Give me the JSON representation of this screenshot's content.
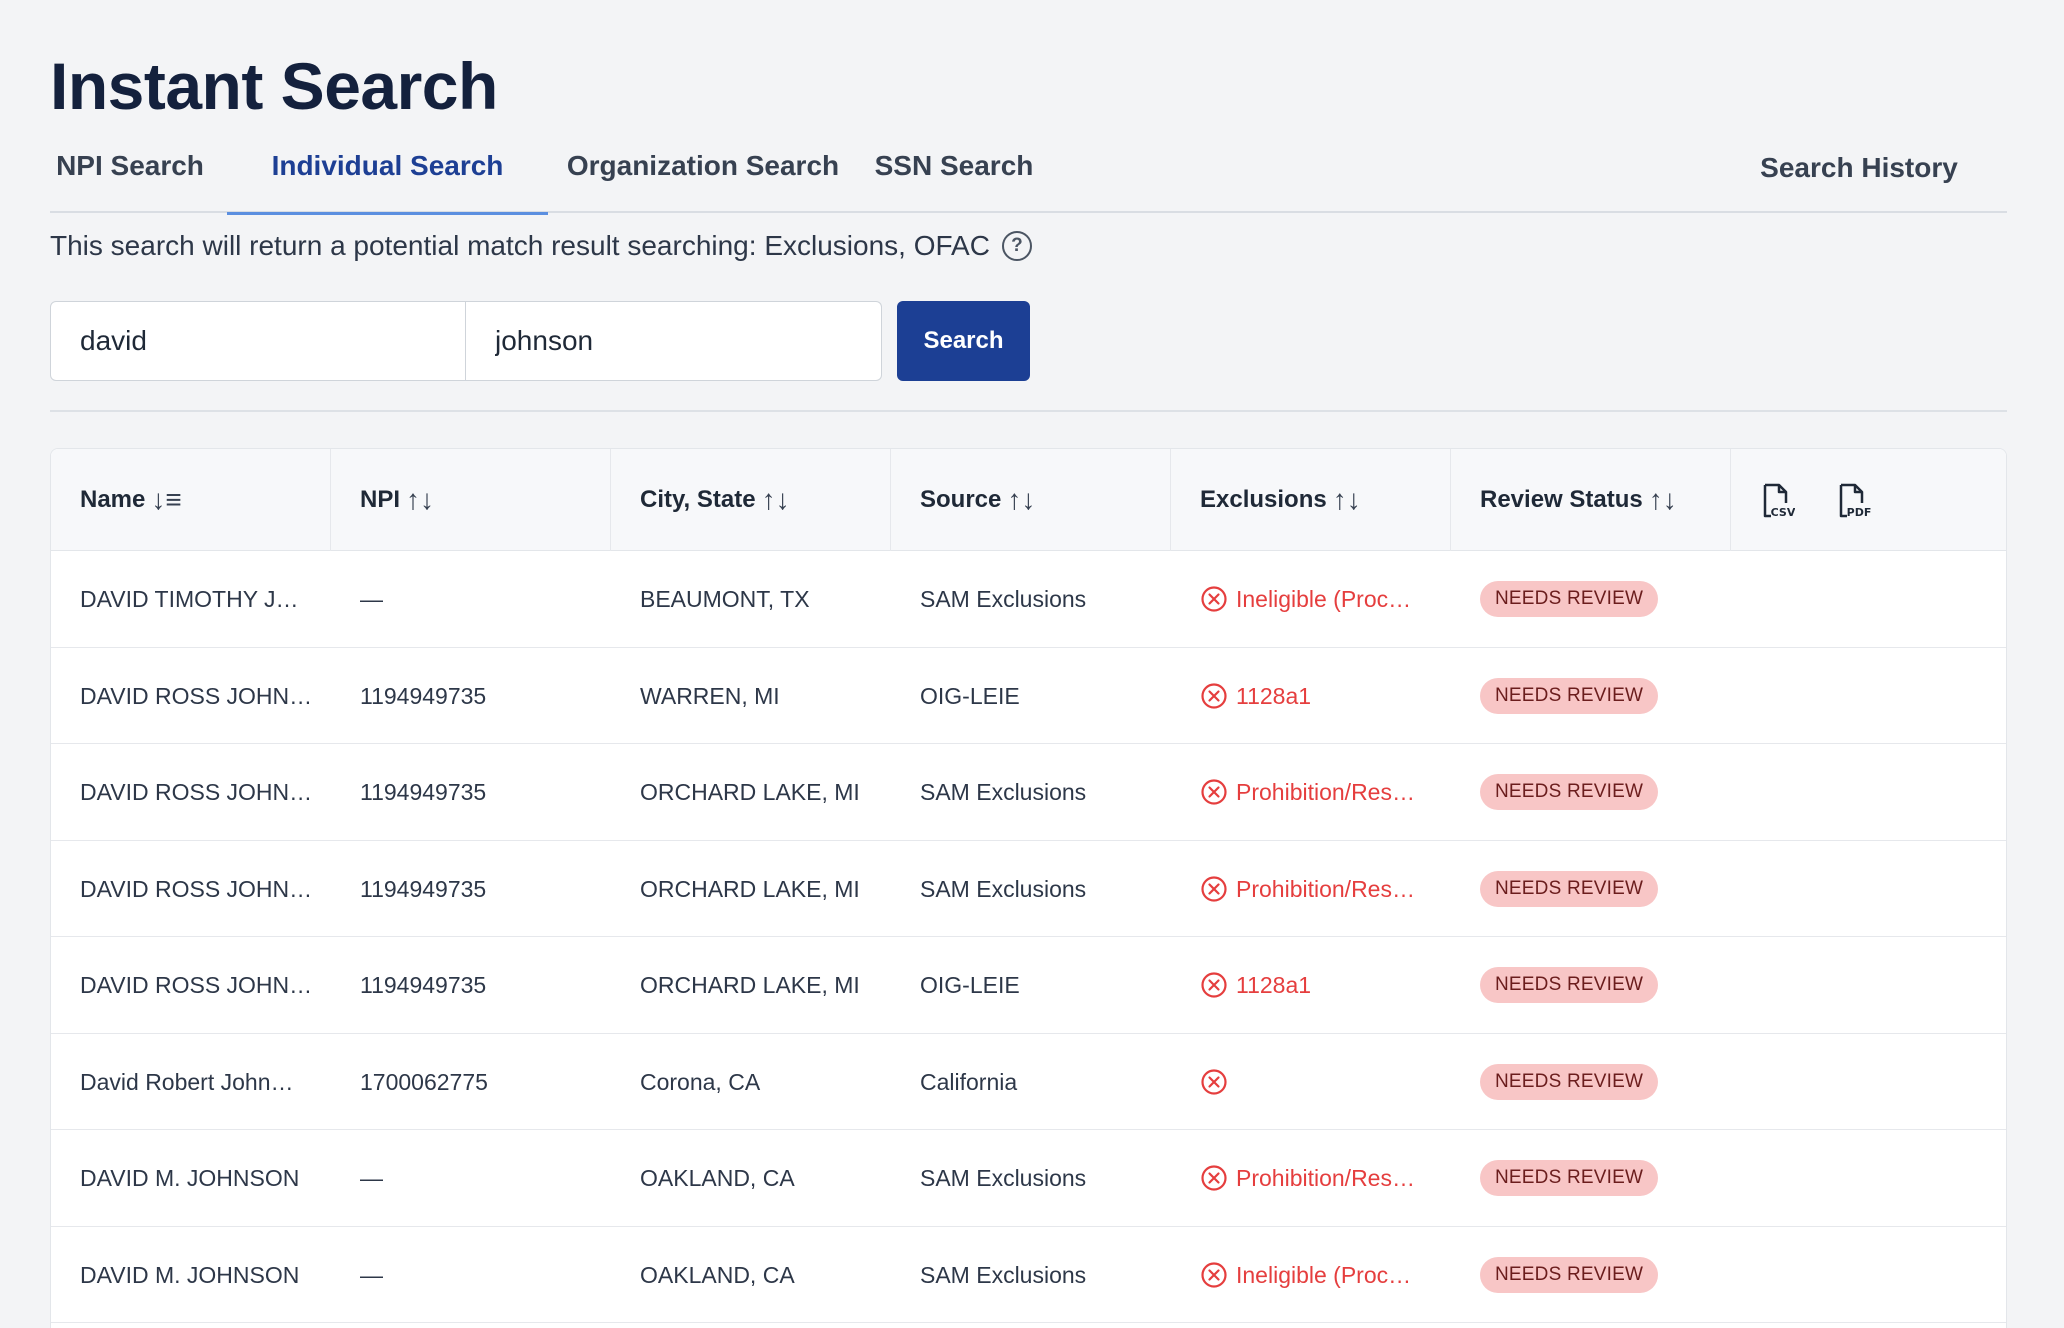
{
  "page": {
    "title": "Instant Search"
  },
  "tabs": [
    {
      "label": "NPI Search",
      "active": false
    },
    {
      "label": "Individual Search",
      "active": true
    },
    {
      "label": "Organization Search",
      "active": false
    },
    {
      "label": "SSN Search",
      "active": false
    }
  ],
  "history_label": "Search History",
  "info": {
    "text": "This search will return a potential match result searching: Exclusions, OFAC",
    "help_glyph": "?"
  },
  "search": {
    "first_name": "david",
    "last_name": "johnson",
    "button_label": "Search"
  },
  "table": {
    "columns": [
      {
        "label": "Name",
        "sort": "↓≡"
      },
      {
        "label": "NPI",
        "sort": "↑↓"
      },
      {
        "label": "City, State",
        "sort": "↑↓"
      },
      {
        "label": "Source",
        "sort": "↑↓"
      },
      {
        "label": "Exclusions",
        "sort": "↑↓"
      },
      {
        "label": "Review Status",
        "sort": "↑↓"
      }
    ],
    "export": {
      "csv_label": "CSV",
      "pdf_label": "PDF"
    },
    "rows": [
      {
        "name": "DAVID TIMOTHY J…",
        "npi": "—",
        "city": "BEAUMONT, TX",
        "source": "SAM Exclusions",
        "exclusion": "Ineligible (Proc…",
        "status": "NEEDS REVIEW"
      },
      {
        "name": "DAVID ROSS JOHN…",
        "npi": "1194949735",
        "city": "WARREN, MI",
        "source": "OIG-LEIE",
        "exclusion": "1128a1",
        "status": "NEEDS REVIEW"
      },
      {
        "name": "DAVID ROSS JOHN…",
        "npi": "1194949735",
        "city": "ORCHARD LAKE, MI",
        "source": "SAM Exclusions",
        "exclusion": "Prohibition/Res…",
        "status": "NEEDS REVIEW"
      },
      {
        "name": "DAVID ROSS JOHN…",
        "npi": "1194949735",
        "city": "ORCHARD LAKE, MI",
        "source": "SAM Exclusions",
        "exclusion": "Prohibition/Res…",
        "status": "NEEDS REVIEW"
      },
      {
        "name": "DAVID ROSS JOHN…",
        "npi": "1194949735",
        "city": "ORCHARD LAKE, MI",
        "source": "OIG-LEIE",
        "exclusion": "1128a1",
        "status": "NEEDS REVIEW"
      },
      {
        "name": "David Robert John…",
        "npi": "1700062775",
        "city": "Corona, CA",
        "source": "California",
        "exclusion": "",
        "status": "NEEDS REVIEW"
      },
      {
        "name": "DAVID M. JOHNSON",
        "npi": "—",
        "city": "OAKLAND, CA",
        "source": "SAM Exclusions",
        "exclusion": "Prohibition/Res…",
        "status": "NEEDS REVIEW"
      },
      {
        "name": "DAVID M. JOHNSON",
        "npi": "—",
        "city": "OAKLAND, CA",
        "source": "SAM Exclusions",
        "exclusion": "Ineligible (Proc…",
        "status": "NEEDS REVIEW"
      }
    ]
  },
  "colors": {
    "primary": "#1c3f94",
    "tab_underline": "#5b8fe0",
    "exclusion_red": "#e53e3e",
    "badge_bg": "#f8c6c6"
  }
}
